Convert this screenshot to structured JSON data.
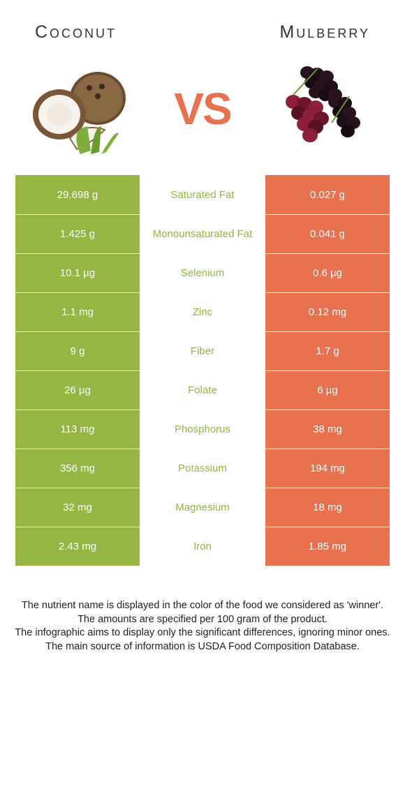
{
  "header": {
    "left": "Coconut",
    "right": "Mulberry"
  },
  "vs_text": "VS",
  "colors": {
    "coconut": "#95b642",
    "mulberry": "#e87150",
    "row_divider": "#ffffff"
  },
  "rows": [
    {
      "left": "29.698 g",
      "label": "Saturated Fat",
      "right": "0.027 g",
      "winner": "coconut"
    },
    {
      "left": "1.425 g",
      "label": "Monounsaturated Fat",
      "right": "0.041 g",
      "winner": "coconut"
    },
    {
      "left": "10.1 µg",
      "label": "Selenium",
      "right": "0.6 µg",
      "winner": "coconut"
    },
    {
      "left": "1.1 mg",
      "label": "Zinc",
      "right": "0.12 mg",
      "winner": "coconut"
    },
    {
      "left": "9 g",
      "label": "Fiber",
      "right": "1.7 g",
      "winner": "coconut"
    },
    {
      "left": "26 µg",
      "label": "Folate",
      "right": "6 µg",
      "winner": "coconut"
    },
    {
      "left": "113 mg",
      "label": "Phosphorus",
      "right": "38 mg",
      "winner": "coconut"
    },
    {
      "left": "356 mg",
      "label": "Potassium",
      "right": "194 mg",
      "winner": "coconut"
    },
    {
      "left": "32 mg",
      "label": "Magnesium",
      "right": "18 mg",
      "winner": "coconut"
    },
    {
      "left": "2.43 mg",
      "label": "Iron",
      "right": "1.85 mg",
      "winner": "coconut"
    }
  ],
  "footer": [
    "The nutrient name is displayed in the color of the food we considered as 'winner'.",
    "The amounts are specified per 100 gram of the product.",
    "The infographic aims to display only the significant differences, ignoring minor ones.",
    "The main source of information is USDA Food Composition Database."
  ]
}
